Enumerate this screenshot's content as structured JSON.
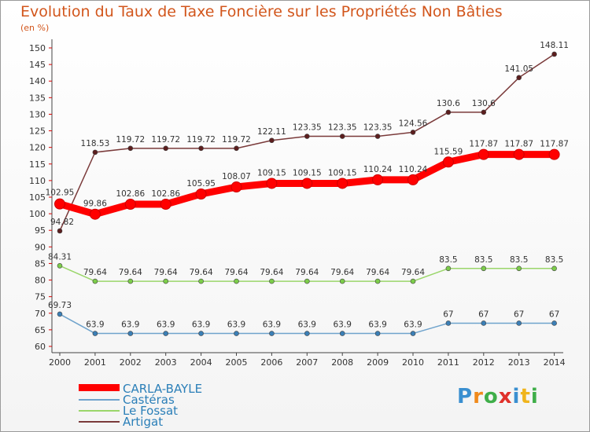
{
  "chart_data": {
    "type": "line",
    "title": "Evolution du Taux de Taxe Foncière sur les Propriétés Non Bâties",
    "ylabel": "(en %)",
    "xlabel": "",
    "ylim": [
      60,
      150
    ],
    "yticks": [
      60,
      65,
      70,
      75,
      80,
      85,
      90,
      95,
      100,
      105,
      110,
      115,
      120,
      125,
      130,
      135,
      140,
      145,
      150
    ],
    "categories": [
      "2000",
      "2001",
      "2002",
      "2003",
      "2004",
      "2005",
      "2006",
      "2007",
      "2008",
      "2009",
      "2010",
      "2011",
      "2012",
      "2013",
      "2014"
    ],
    "series": [
      {
        "name": "CARLA-BAYLE",
        "color": "#ff0000",
        "marker": "#ff0000",
        "width": 9,
        "bold": true,
        "values": [
          102.95,
          99.86,
          102.86,
          102.86,
          105.95,
          108.07,
          109.15,
          109.15,
          109.15,
          110.24,
          110.24,
          115.59,
          117.87,
          117.87,
          117.87
        ],
        "labels": [
          "102.95",
          "99.86",
          "102.86",
          "102.86",
          "105.95",
          "108.07",
          "109.15",
          "109.15",
          "109.15",
          "110.24",
          "110.24",
          "115.59",
          "117.87",
          "117.87",
          "117.87"
        ]
      },
      {
        "name": "Castéras",
        "color": "#6fa3cc",
        "marker": "#3b7fb6",
        "width": 1.5,
        "bold": false,
        "values": [
          69.73,
          63.9,
          63.9,
          63.9,
          63.9,
          63.9,
          63.9,
          63.9,
          63.9,
          63.9,
          63.9,
          67,
          67,
          67,
          67
        ],
        "labels": [
          "69.73",
          "63.9",
          "63.9",
          "63.9",
          "63.9",
          "63.9",
          "63.9",
          "63.9",
          "63.9",
          "63.9",
          "63.9",
          "67",
          "67",
          "67",
          "67"
        ]
      },
      {
        "name": "Le Fossat",
        "color": "#9ad66a",
        "marker": "#7ccd4a",
        "width": 1.5,
        "bold": false,
        "values": [
          84.31,
          79.64,
          79.64,
          79.64,
          79.64,
          79.64,
          79.64,
          79.64,
          79.64,
          79.64,
          79.64,
          83.5,
          83.5,
          83.5,
          83.5
        ],
        "labels": [
          "84.31",
          "79.64",
          "79.64",
          "79.64",
          "79.64",
          "79.64",
          "79.64",
          "79.64",
          "79.64",
          "79.64",
          "79.64",
          "83.5",
          "83.5",
          "83.5",
          "83.5"
        ]
      },
      {
        "name": "Artigat",
        "color": "#7a3a3a",
        "marker": "#5c1e1e",
        "width": 1.5,
        "bold": false,
        "values": [
          94.82,
          118.53,
          119.72,
          119.72,
          119.72,
          119.72,
          122.11,
          123.35,
          123.35,
          123.35,
          124.56,
          130.6,
          130.6,
          141.05,
          148.11
        ],
        "labels": [
          "94.82",
          "118.53",
          "119.72",
          "119.72",
          "119.72",
          "119.72",
          "122.11",
          "123.35",
          "123.35",
          "123.35",
          "124.56",
          "130.6",
          "130.6",
          "141.05",
          "148.11"
        ]
      }
    ]
  },
  "logo": {
    "text": "Proxiti",
    "letters": [
      "P",
      "r",
      "o",
      "x",
      "i",
      "t",
      "i"
    ]
  }
}
